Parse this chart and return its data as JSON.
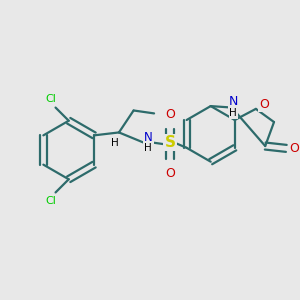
{
  "bg_color": "#e8e8e8",
  "bond_color": "#2d6b6b",
  "cl_color": "#00cc00",
  "n_color": "#0000cc",
  "o_color": "#cc0000",
  "s_color": "#cccc00",
  "lw": 1.6,
  "dbl_off": 0.011,
  "figsize": [
    3.0,
    3.0
  ],
  "dpi": 100,
  "xlim": [
    0,
    10
  ],
  "ylim": [
    0,
    10
  ]
}
